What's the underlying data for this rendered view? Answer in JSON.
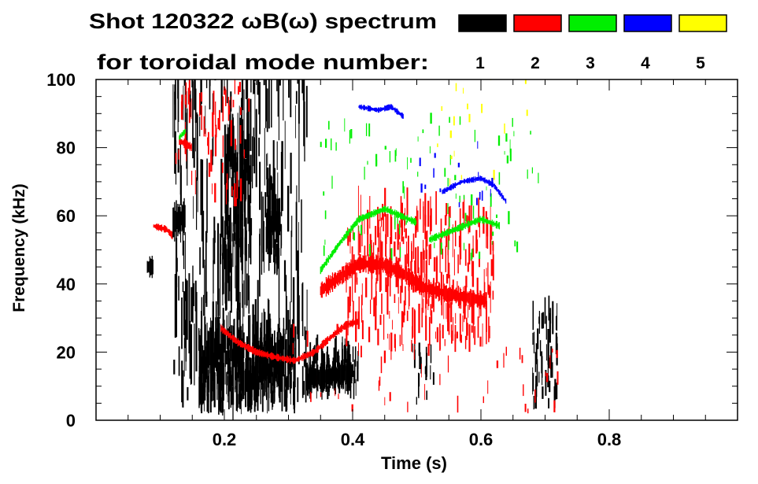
{
  "chart_data": {
    "type": "heatmap",
    "title": "Shot 120322 ωB(ω) spectrum",
    "legend_title": "for toroidal mode number:",
    "xlabel": "Time (s)",
    "ylabel": "Frequency (kHz)",
    "xlim": [
      0,
      1.0
    ],
    "ylim": [
      0,
      100
    ],
    "x_ticks": [
      0.2,
      0.4,
      0.6,
      0.8
    ],
    "x_tick_labels": [
      "0.2",
      "0.4",
      "0.6",
      "0.8"
    ],
    "y_ticks": [
      0,
      20,
      40,
      60,
      80,
      100
    ],
    "y_tick_labels": [
      "0",
      "20",
      "40",
      "60",
      "80",
      "100"
    ],
    "legend_placement": "top-right",
    "legend": [
      {
        "label": "1",
        "color": "#000000"
      },
      {
        "label": "2",
        "color": "#ff0000"
      },
      {
        "label": "3",
        "color": "#00ee00"
      },
      {
        "label": "4",
        "color": "#0000ff"
      },
      {
        "label": "5",
        "color": "#ffff00"
      }
    ],
    "traces": [
      {
        "mode": 2,
        "spread": 1.5,
        "points": [
          [
            0.09,
            57
          ],
          [
            0.11,
            56
          ],
          [
            0.12,
            54
          ]
        ]
      },
      {
        "mode": 2,
        "spread": 1.6,
        "points": [
          [
            0.195,
            27
          ],
          [
            0.22,
            23
          ],
          [
            0.25,
            20
          ],
          [
            0.28,
            18.5
          ],
          [
            0.31,
            17.5
          ],
          [
            0.34,
            20
          ],
          [
            0.37,
            25
          ],
          [
            0.39,
            28
          ],
          [
            0.41,
            29
          ]
        ]
      },
      {
        "mode": 2,
        "spread": 4,
        "points": [
          [
            0.35,
            38
          ],
          [
            0.38,
            42
          ],
          [
            0.41,
            46
          ],
          [
            0.45,
            45.5
          ],
          [
            0.48,
            43
          ],
          [
            0.51,
            39
          ],
          [
            0.55,
            37
          ],
          [
            0.58,
            36
          ],
          [
            0.61,
            35
          ]
        ]
      },
      {
        "mode": 2,
        "spread": 2,
        "points": [
          [
            0.13,
            82
          ],
          [
            0.15,
            80
          ]
        ]
      },
      {
        "mode": 1,
        "spread": 5,
        "points": [
          [
            0.08,
            45
          ],
          [
            0.09,
            45
          ]
        ]
      },
      {
        "mode": 1,
        "spread": 8,
        "points": [
          [
            0.12,
            58
          ],
          [
            0.14,
            60
          ]
        ]
      },
      {
        "mode": 1,
        "spread": 6,
        "points": [
          [
            0.33,
            12
          ],
          [
            0.37,
            13
          ],
          [
            0.4,
            14
          ]
        ]
      },
      {
        "mode": 3,
        "spread": 1.5,
        "points": [
          [
            0.35,
            44
          ],
          [
            0.38,
            52
          ],
          [
            0.41,
            59
          ],
          [
            0.45,
            62
          ],
          [
            0.5,
            58
          ]
        ]
      },
      {
        "mode": 3,
        "spread": 1.5,
        "points": [
          [
            0.52,
            53
          ],
          [
            0.56,
            56
          ],
          [
            0.6,
            59
          ],
          [
            0.63,
            57
          ]
        ]
      },
      {
        "mode": 3,
        "spread": 1.5,
        "points": [
          [
            0.13,
            83
          ],
          [
            0.14,
            85
          ]
        ]
      },
      {
        "mode": 4,
        "spread": 1.2,
        "points": [
          [
            0.41,
            92
          ],
          [
            0.44,
            91
          ],
          [
            0.46,
            92
          ],
          [
            0.48,
            89
          ]
        ]
      },
      {
        "mode": 4,
        "spread": 1.2,
        "points": [
          [
            0.54,
            67
          ],
          [
            0.57,
            70
          ],
          [
            0.6,
            71
          ],
          [
            0.62,
            69
          ],
          [
            0.64,
            64
          ]
        ]
      }
    ],
    "streak_regions": [
      {
        "mode": 1,
        "t": [
          0.12,
          0.33
        ],
        "f": [
          0,
          100
        ],
        "n": 260,
        "len": [
          3,
          25
        ]
      },
      {
        "mode": 1,
        "t": [
          0.16,
          0.31
        ],
        "f": [
          2,
          22
        ],
        "n": 420,
        "len": [
          4,
          12
        ]
      },
      {
        "mode": 1,
        "t": [
          0.2,
          0.24
        ],
        "f": [
          30,
          80
        ],
        "n": 120,
        "len": [
          5,
          20
        ]
      },
      {
        "mode": 1,
        "t": [
          0.265,
          0.29
        ],
        "f": [
          42,
          62
        ],
        "n": 50,
        "len": [
          4,
          12
        ]
      },
      {
        "mode": 1,
        "t": [
          0.32,
          0.41
        ],
        "f": [
          6,
          18
        ],
        "n": 120,
        "len": [
          3,
          8
        ]
      },
      {
        "mode": 1,
        "t": [
          0.49,
          0.53
        ],
        "f": [
          3,
          20
        ],
        "n": 20,
        "len": [
          2,
          8
        ]
      },
      {
        "mode": 1,
        "t": [
          0.68,
          0.72
        ],
        "f": [
          3,
          30
        ],
        "n": 50,
        "len": [
          2,
          10
        ]
      },
      {
        "mode": 2,
        "t": [
          0.39,
          0.62
        ],
        "f": [
          20,
          60
        ],
        "n": 320,
        "len": [
          2,
          10
        ]
      },
      {
        "mode": 2,
        "t": [
          0.12,
          0.24
        ],
        "f": [
          62,
          98
        ],
        "n": 60,
        "len": [
          2,
          8
        ]
      },
      {
        "mode": 2,
        "t": [
          0.3,
          0.72
        ],
        "f": [
          2,
          30
        ],
        "n": 60,
        "len": [
          1,
          5
        ]
      },
      {
        "mode": 3,
        "t": [
          0.35,
          0.7
        ],
        "f": [
          45,
          88
        ],
        "n": 90,
        "len": [
          1,
          4
        ]
      },
      {
        "mode": 4,
        "t": [
          0.5,
          0.62
        ],
        "f": [
          60,
          80
        ],
        "n": 15,
        "len": [
          1,
          3
        ]
      },
      {
        "mode": 5,
        "t": [
          0.52,
          0.68
        ],
        "f": [
          68,
          100
        ],
        "n": 18,
        "len": [
          1,
          3
        ]
      }
    ]
  }
}
